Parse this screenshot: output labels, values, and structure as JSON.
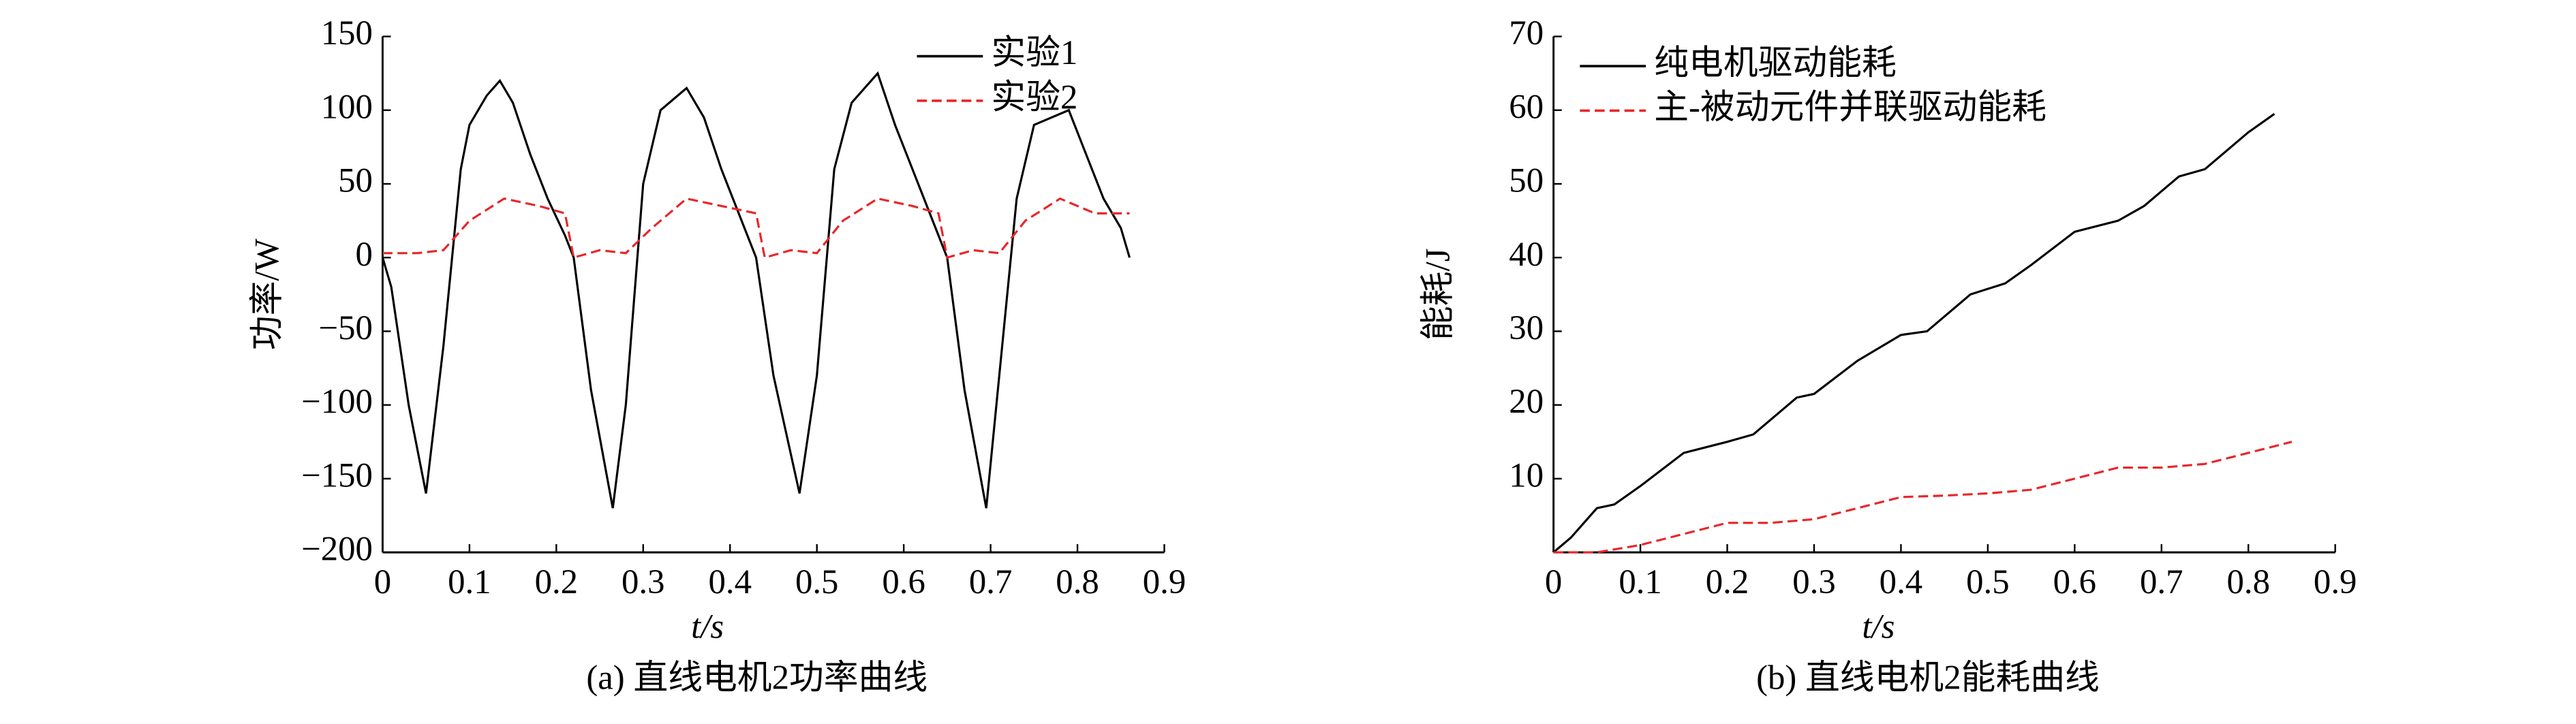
{
  "chart_data": [
    {
      "type": "line",
      "caption": "(a) 直线电机2功率曲线",
      "xlabel": "t/s",
      "ylabel": "功率/W",
      "xlim": [
        0,
        0.9
      ],
      "xticks": [
        0,
        0.1,
        0.2,
        0.3,
        0.4,
        0.5,
        0.6,
        0.7,
        0.8,
        0.9
      ],
      "ylim": [
        -200,
        150
      ],
      "yticks": [
        {
          "value": -200,
          "label": "−200"
        },
        {
          "value": -150,
          "label": "−150"
        },
        {
          "value": -100,
          "label": "−100"
        },
        {
          "value": -50,
          "label": "−50"
        },
        0,
        50,
        100,
        150
      ],
      "legend": "upper right",
      "series": [
        {
          "name": "实验1",
          "color": "#000000",
          "dash": false,
          "x": [
            0,
            0.01,
            0.03,
            0.05,
            0.07,
            0.09,
            0.1,
            0.12,
            0.135,
            0.15,
            0.17,
            0.19,
            0.21,
            0.22,
            0.24,
            0.265,
            0.28,
            0.3,
            0.32,
            0.35,
            0.37,
            0.39,
            0.41,
            0.43,
            0.45,
            0.48,
            0.5,
            0.52,
            0.54,
            0.57,
            0.59,
            0.61,
            0.63,
            0.65,
            0.67,
            0.695,
            0.71,
            0.73,
            0.75,
            0.79,
            0.81,
            0.83,
            0.85,
            0.86
          ],
          "values": [
            0,
            -20,
            -100,
            -160,
            -60,
            60,
            90,
            110,
            120,
            105,
            70,
            40,
            15,
            0,
            -90,
            -170,
            -100,
            50,
            100,
            115,
            95,
            60,
            30,
            0,
            -80,
            -160,
            -80,
            60,
            105,
            125,
            90,
            60,
            30,
            0,
            -90,
            -170,
            -80,
            40,
            90,
            100,
            70,
            40,
            20,
            0
          ]
        },
        {
          "name": "实验2",
          "color": "#e8262a",
          "dash": true,
          "x": [
            0,
            0.04,
            0.07,
            0.1,
            0.14,
            0.18,
            0.21,
            0.22,
            0.25,
            0.28,
            0.31,
            0.35,
            0.39,
            0.43,
            0.44,
            0.47,
            0.5,
            0.53,
            0.57,
            0.61,
            0.64,
            0.65,
            0.68,
            0.71,
            0.74,
            0.78,
            0.82,
            0.86
          ],
          "values": [
            3,
            3,
            5,
            25,
            40,
            35,
            30,
            0,
            5,
            3,
            20,
            40,
            35,
            30,
            0,
            5,
            3,
            25,
            40,
            35,
            30,
            0,
            5,
            3,
            25,
            40,
            30,
            30
          ]
        }
      ]
    },
    {
      "type": "line",
      "caption": "(b) 直线电机2能耗曲线",
      "xlabel": "t/s",
      "ylabel": "能耗/J",
      "xlim": [
        0,
        0.9
      ],
      "xticks": [
        0,
        0.1,
        0.2,
        0.3,
        0.4,
        0.5,
        0.6,
        0.7,
        0.8,
        0.9
      ],
      "ylim": [
        0,
        70
      ],
      "yticks": [
        10,
        20,
        30,
        40,
        50,
        60,
        70
      ],
      "legend": "upper left",
      "series": [
        {
          "name": "纯电机驱动能耗",
          "color": "#000000",
          "dash": false,
          "x": [
            0,
            0.02,
            0.05,
            0.07,
            0.1,
            0.15,
            0.2,
            0.23,
            0.28,
            0.3,
            0.35,
            0.4,
            0.43,
            0.48,
            0.52,
            0.55,
            0.6,
            0.65,
            0.68,
            0.72,
            0.75,
            0.8,
            0.83
          ],
          "values": [
            0,
            2,
            6,
            6.5,
            9,
            13.5,
            15,
            16,
            21,
            21.5,
            26,
            29.5,
            30,
            35,
            36.5,
            39,
            43.5,
            45,
            47,
            51,
            52,
            57,
            59.5
          ]
        },
        {
          "name": "主-被动元件并联驱动能耗",
          "color": "#e8262a",
          "dash": true,
          "x": [
            0,
            0.05,
            0.1,
            0.15,
            0.2,
            0.25,
            0.3,
            0.35,
            0.4,
            0.45,
            0.5,
            0.55,
            0.6,
            0.65,
            0.7,
            0.75,
            0.8,
            0.85
          ],
          "values": [
            0,
            0,
            1,
            2.5,
            4,
            4,
            4.5,
            6,
            7.5,
            7.7,
            8,
            8.5,
            10,
            11.5,
            11.5,
            12,
            13.5,
            15
          ]
        }
      ]
    }
  ]
}
